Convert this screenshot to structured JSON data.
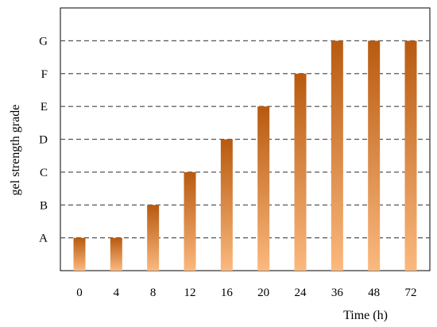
{
  "chart_data": {
    "type": "bar",
    "title": "",
    "xlabel": "Time (h)",
    "ylabel": "gel strength grade",
    "categories": [
      "0",
      "4",
      "8",
      "12",
      "16",
      "20",
      "24",
      "36",
      "48",
      "72"
    ],
    "y_categories": [
      "A",
      "B",
      "C",
      "D",
      "E",
      "F",
      "G"
    ],
    "values": [
      "A",
      "A",
      "B",
      "C",
      "D",
      "E",
      "F",
      "G",
      "G",
      "G"
    ],
    "ylim": [
      0,
      8
    ],
    "grid": {
      "horizontal": true,
      "style": "dashed"
    },
    "legend": "none",
    "colors": {
      "bar_top": "#b85a10",
      "bar_bottom": "#fbb97e",
      "grid": "#555555",
      "axis": "#000000"
    }
  }
}
